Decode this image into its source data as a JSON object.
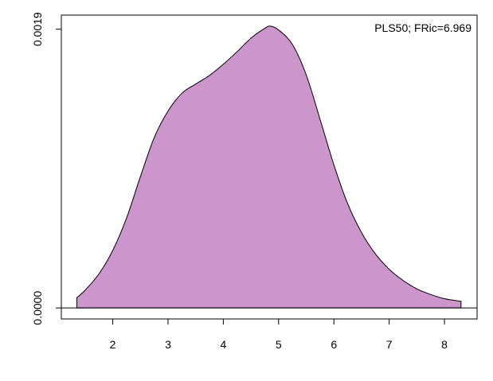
{
  "chart_data": {
    "type": "area",
    "title": "",
    "xlabel": "",
    "ylabel": "",
    "annotation": "PLS50; FRic=6.969",
    "xlim": [
      1.07,
      8.59
    ],
    "ylim": [
      -7.5e-05,
      0.001996
    ],
    "x_ticks": [
      2,
      3,
      4,
      5,
      6,
      7,
      8
    ],
    "x_tick_labels": [
      "2",
      "3",
      "4",
      "5",
      "6",
      "7",
      "8"
    ],
    "y_ticks": [
      0.0,
      0.0019
    ],
    "y_tick_labels": [
      "0.0000",
      "0.0019"
    ],
    "baseline_y": 0,
    "fill_color": "#cc95cc",
    "line_color": "#000000",
    "series": [
      {
        "x": [
          1.35,
          1.5,
          1.75,
          2.0,
          2.25,
          2.5,
          2.75,
          3.0,
          3.25,
          3.5,
          3.75,
          4.0,
          4.25,
          4.5,
          4.75,
          4.85,
          5.0,
          5.25,
          5.5,
          5.75,
          6.0,
          6.25,
          6.5,
          6.75,
          7.0,
          7.25,
          7.5,
          7.75,
          8.0,
          8.3
        ],
        "y": [
          7e-05,
          0.000121,
          0.000232,
          0.000392,
          0.000613,
          0.000895,
          0.001161,
          0.001342,
          0.001463,
          0.001526,
          0.001585,
          0.001661,
          0.001747,
          0.001839,
          0.001906,
          0.001921,
          0.001895,
          0.001796,
          0.001588,
          0.001286,
          0.000975,
          0.00071,
          0.000514,
          0.000369,
          0.000264,
          0.000188,
          0.00013,
          9.2e-05,
          6.3e-05,
          4.5e-05
        ]
      }
    ]
  }
}
